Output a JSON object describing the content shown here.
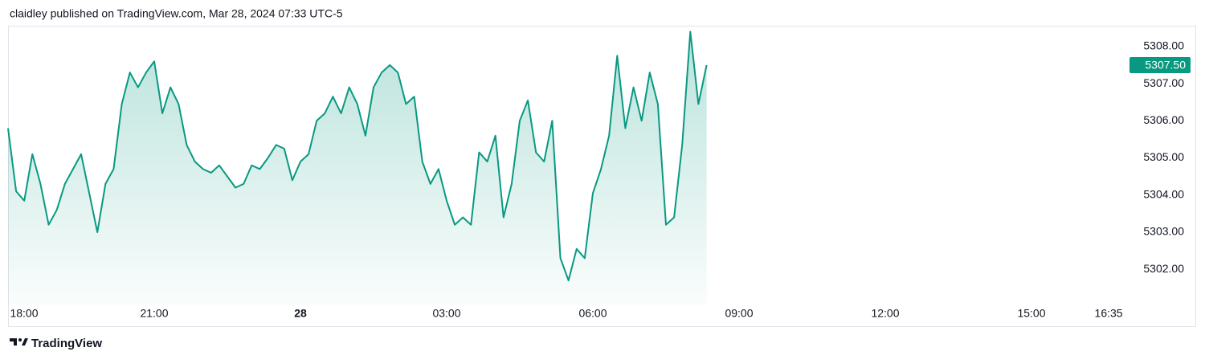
{
  "header": "claidley published on TradingView.com, Mar 28, 2024 07:33 UTC-5",
  "brand": "TradingView",
  "chart_data": {
    "type": "area",
    "color": "#089981",
    "x": [
      "18:00",
      "18:10",
      "18:20",
      "18:30",
      "18:40",
      "18:50",
      "19:00",
      "19:10",
      "19:20",
      "19:30",
      "19:40",
      "19:50",
      "20:00",
      "20:10",
      "20:20",
      "20:30",
      "20:40",
      "20:50",
      "21:00",
      "21:10",
      "21:20",
      "21:30",
      "21:40",
      "21:50",
      "22:00",
      "22:10",
      "22:20",
      "22:30",
      "22:40",
      "22:50",
      "23:00",
      "23:10",
      "23:20",
      "23:30",
      "23:40",
      "23:50",
      "00:00",
      "00:10",
      "00:20",
      "00:30",
      "00:40",
      "00:50",
      "01:00",
      "01:10",
      "01:20",
      "01:30",
      "01:40",
      "01:50",
      "02:00",
      "02:10",
      "02:20",
      "02:30",
      "02:40",
      "02:50",
      "03:00",
      "03:10",
      "03:20",
      "03:30",
      "03:40",
      "03:50",
      "04:00",
      "04:10",
      "04:20",
      "04:30",
      "04:40",
      "04:50",
      "05:00",
      "05:10",
      "05:20",
      "05:30",
      "05:40",
      "05:50",
      "06:00",
      "06:10",
      "06:20",
      "06:30",
      "06:40",
      "06:50",
      "07:00",
      "07:10",
      "07:20",
      "07:30",
      "07:40",
      "07:50",
      "08:00",
      "08:10",
      "08:20"
    ],
    "values": [
      5305.8,
      5304.1,
      5303.85,
      5305.1,
      5304.3,
      5303.2,
      5303.6,
      5304.3,
      5304.7,
      5305.1,
      5304.05,
      5303.0,
      5304.3,
      5304.7,
      5306.45,
      5307.3,
      5306.9,
      5307.3,
      5307.6,
      5306.2,
      5306.9,
      5306.45,
      5305.35,
      5304.9,
      5304.7,
      5304.6,
      5304.8,
      5304.5,
      5304.2,
      5304.3,
      5304.8,
      5304.7,
      5305.0,
      5305.35,
      5305.25,
      5304.4,
      5304.9,
      5305.1,
      5306.0,
      5306.2,
      5306.65,
      5306.2,
      5306.9,
      5306.45,
      5305.6,
      5306.9,
      5307.3,
      5307.5,
      5307.3,
      5306.45,
      5306.65,
      5304.9,
      5304.3,
      5304.7,
      5303.85,
      5303.2,
      5303.4,
      5303.2,
      5305.15,
      5304.9,
      5305.6,
      5303.4,
      5304.3,
      5306.0,
      5306.55,
      5305.15,
      5304.9,
      5306.0,
      5302.3,
      5301.7,
      5302.55,
      5302.3,
      5304.05,
      5304.7,
      5305.6,
      5307.75,
      5305.8,
      5306.9,
      5306.0,
      5307.3,
      5306.45,
      5303.2,
      5303.4,
      5305.35,
      5308.4,
      5306.45,
      5307.5
    ],
    "ylim": [
      5301.03,
      5308.56
    ],
    "yticks": [
      {
        "value": 5302,
        "label": "5302.00"
      },
      {
        "value": 5303,
        "label": "5303.00"
      },
      {
        "value": 5304,
        "label": "5304.00"
      },
      {
        "value": 5305,
        "label": "5305.00"
      },
      {
        "value": 5306,
        "label": "5306.00"
      },
      {
        "value": 5307,
        "label": "5307.00"
      },
      {
        "value": 5308,
        "label": "5308.00"
      }
    ],
    "xticks": [
      {
        "value": "18:00",
        "label": "18:00"
      },
      {
        "value": "21:00",
        "label": "21:00"
      },
      {
        "value": "00:00",
        "label": "28"
      },
      {
        "value": "03:00",
        "label": "03:00"
      },
      {
        "value": "06:00",
        "label": "06:00"
      },
      {
        "value": "09:00",
        "label": "09:00"
      },
      {
        "value": "12:00",
        "label": "12:00"
      },
      {
        "value": "15:00",
        "label": "15:00"
      },
      {
        "value": "16:35",
        "label": "16:35"
      }
    ],
    "last_price": {
      "value": 5307.5,
      "label": "5307.50"
    }
  }
}
